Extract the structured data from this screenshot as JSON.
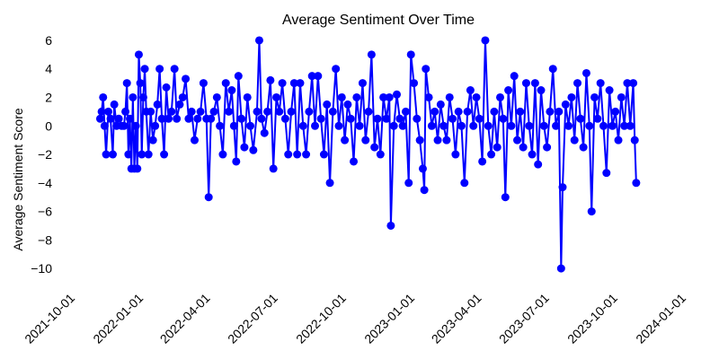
{
  "chart_data": {
    "type": "line",
    "title": "Average Sentiment Over Time",
    "xlabel": "",
    "ylabel": "Average Sentiment Score",
    "x_ticks": [
      "2021-10-01",
      "2022-01-01",
      "2022-04-01",
      "2022-07-01",
      "2022-10-01",
      "2023-01-01",
      "2023-04-01",
      "2023-07-01",
      "2023-10-01",
      "2024-01-01"
    ],
    "y_ticks": [
      6,
      4,
      2,
      0,
      -2,
      -4,
      -6,
      -8,
      -10
    ],
    "xlim": [
      "2021-10-01",
      "2024-01-01"
    ],
    "ylim": [
      -11,
      6.5
    ],
    "grid": false,
    "series_color": "#0000ff",
    "series": [
      {
        "marker": "circle",
        "points": [
          [
            "2021-11-08",
            0.5
          ],
          [
            "2021-11-10",
            1.0
          ],
          [
            "2021-11-12",
            2.0
          ],
          [
            "2021-11-14",
            0.0
          ],
          [
            "2021-11-16",
            -2.0
          ],
          [
            "2021-11-19",
            1.0
          ],
          [
            "2021-11-22",
            0.5
          ],
          [
            "2021-11-25",
            -2.0
          ],
          [
            "2021-11-27",
            1.5
          ],
          [
            "2021-11-30",
            0.0
          ],
          [
            "2021-12-03",
            0.5
          ],
          [
            "2021-12-07",
            0.0
          ],
          [
            "2021-12-10",
            0.0
          ],
          [
            "2021-12-12",
            1.0
          ],
          [
            "2021-12-14",
            3.0
          ],
          [
            "2021-12-16",
            -2.0
          ],
          [
            "2021-12-18",
            0.5
          ],
          [
            "2021-12-20",
            -3.0
          ],
          [
            "2021-12-22",
            2.0
          ],
          [
            "2021-12-24",
            -3.0
          ],
          [
            "2021-12-26",
            0.0
          ],
          [
            "2021-12-28",
            -3.0
          ],
          [
            "2021-12-30",
            5.0
          ],
          [
            "2022-01-01",
            3.0
          ],
          [
            "2022-01-03",
            -2.0
          ],
          [
            "2022-01-05",
            2.0
          ],
          [
            "2022-01-07",
            4.0
          ],
          [
            "2022-01-09",
            1.0
          ],
          [
            "2022-01-12",
            -2.0
          ],
          [
            "2022-01-15",
            1.0
          ],
          [
            "2022-01-18",
            -1.0
          ],
          [
            "2022-01-21",
            0.0
          ],
          [
            "2022-01-24",
            1.5
          ],
          [
            "2022-01-27",
            4.0
          ],
          [
            "2022-01-30",
            0.5
          ],
          [
            "2022-02-02",
            -2.0
          ],
          [
            "2022-02-05",
            2.7
          ],
          [
            "2022-02-08",
            0.5
          ],
          [
            "2022-02-12",
            1.0
          ],
          [
            "2022-02-16",
            4.0
          ],
          [
            "2022-02-19",
            0.5
          ],
          [
            "2022-02-23",
            1.5
          ],
          [
            "2022-02-27",
            2.0
          ],
          [
            "2022-03-03",
            3.3
          ],
          [
            "2022-03-07",
            0.5
          ],
          [
            "2022-03-11",
            1.0
          ],
          [
            "2022-03-15",
            -1.0
          ],
          [
            "2022-03-19",
            0.5
          ],
          [
            "2022-03-23",
            1.0
          ],
          [
            "2022-03-27",
            3.0
          ],
          [
            "2022-03-31",
            0.5
          ],
          [
            "2022-04-03",
            -5.0
          ],
          [
            "2022-04-06",
            0.5
          ],
          [
            "2022-04-10",
            1.0
          ],
          [
            "2022-04-14",
            2.0
          ],
          [
            "2022-04-18",
            0.0
          ],
          [
            "2022-04-22",
            -2.0
          ],
          [
            "2022-04-26",
            3.0
          ],
          [
            "2022-04-30",
            1.0
          ],
          [
            "2022-05-04",
            2.5
          ],
          [
            "2022-05-07",
            0.0
          ],
          [
            "2022-05-10",
            -2.5
          ],
          [
            "2022-05-13",
            3.5
          ],
          [
            "2022-05-17",
            0.5
          ],
          [
            "2022-05-21",
            -1.5
          ],
          [
            "2022-05-25",
            2.0
          ],
          [
            "2022-05-29",
            0.0
          ],
          [
            "2022-06-02",
            -1.7
          ],
          [
            "2022-06-07",
            1.0
          ],
          [
            "2022-06-10",
            6.0
          ],
          [
            "2022-06-13",
            0.5
          ],
          [
            "2022-06-17",
            -0.5
          ],
          [
            "2022-06-21",
            1.0
          ],
          [
            "2022-06-25",
            3.2
          ],
          [
            "2022-06-29",
            -3.0
          ],
          [
            "2022-07-03",
            2.0
          ],
          [
            "2022-07-07",
            1.0
          ],
          [
            "2022-07-11",
            3.0
          ],
          [
            "2022-07-15",
            0.5
          ],
          [
            "2022-07-19",
            -2.0
          ],
          [
            "2022-07-23",
            1.0
          ],
          [
            "2022-07-27",
            3.0
          ],
          [
            "2022-07-31",
            -2.0
          ],
          [
            "2022-08-04",
            3.0
          ],
          [
            "2022-08-08",
            0.0
          ],
          [
            "2022-08-12",
            -2.0
          ],
          [
            "2022-08-16",
            1.0
          ],
          [
            "2022-08-20",
            3.5
          ],
          [
            "2022-08-24",
            0.0
          ],
          [
            "2022-08-28",
            3.5
          ],
          [
            "2022-09-01",
            0.5
          ],
          [
            "2022-09-05",
            -2.0
          ],
          [
            "2022-09-09",
            1.5
          ],
          [
            "2022-09-13",
            -4.0
          ],
          [
            "2022-09-17",
            1.0
          ],
          [
            "2022-09-21",
            4.0
          ],
          [
            "2022-09-25",
            0.0
          ],
          [
            "2022-09-29",
            2.0
          ],
          [
            "2022-10-03",
            -1.0
          ],
          [
            "2022-10-07",
            1.5
          ],
          [
            "2022-10-11",
            0.5
          ],
          [
            "2022-10-15",
            -2.5
          ],
          [
            "2022-10-19",
            2.0
          ],
          [
            "2022-10-23",
            0.0
          ],
          [
            "2022-10-27",
            3.0
          ],
          [
            "2022-10-31",
            -1.0
          ],
          [
            "2022-11-04",
            1.0
          ],
          [
            "2022-11-08",
            5.0
          ],
          [
            "2022-11-12",
            -1.5
          ],
          [
            "2022-11-16",
            0.5
          ],
          [
            "2022-11-20",
            -2.0
          ],
          [
            "2022-11-24",
            2.0
          ],
          [
            "2022-11-28",
            0.5
          ],
          [
            "2022-12-02",
            2.0
          ],
          [
            "2022-12-04",
            -7.0
          ],
          [
            "2022-12-08",
            0.0
          ],
          [
            "2022-12-12",
            2.2
          ],
          [
            "2022-12-16",
            0.5
          ],
          [
            "2022-12-20",
            0.0
          ],
          [
            "2022-12-24",
            1.0
          ],
          [
            "2022-12-28",
            -4.0
          ],
          [
            "2022-12-31",
            5.0
          ],
          [
            "2023-01-04",
            3.0
          ],
          [
            "2023-01-08",
            0.5
          ],
          [
            "2023-01-12",
            -1.0
          ],
          [
            "2023-01-16",
            -3.0
          ],
          [
            "2023-01-18",
            -4.5
          ],
          [
            "2023-01-20",
            4.0
          ],
          [
            "2023-01-24",
            2.0
          ],
          [
            "2023-01-28",
            0.0
          ],
          [
            "2023-02-01",
            1.0
          ],
          [
            "2023-02-05",
            -1.0
          ],
          [
            "2023-02-09",
            1.5
          ],
          [
            "2023-02-13",
            0.0
          ],
          [
            "2023-02-17",
            -1.0
          ],
          [
            "2023-02-21",
            2.0
          ],
          [
            "2023-02-25",
            0.5
          ],
          [
            "2023-03-01",
            -2.0
          ],
          [
            "2023-03-05",
            1.0
          ],
          [
            "2023-03-09",
            0.0
          ],
          [
            "2023-03-13",
            -4.0
          ],
          [
            "2023-03-17",
            1.0
          ],
          [
            "2023-03-21",
            2.5
          ],
          [
            "2023-03-25",
            0.0
          ],
          [
            "2023-03-29",
            2.0
          ],
          [
            "2023-04-02",
            0.5
          ],
          [
            "2023-04-06",
            -2.5
          ],
          [
            "2023-04-10",
            6.0
          ],
          [
            "2023-04-14",
            0.0
          ],
          [
            "2023-04-18",
            -2.0
          ],
          [
            "2023-04-22",
            1.0
          ],
          [
            "2023-04-26",
            -1.5
          ],
          [
            "2023-04-30",
            2.0
          ],
          [
            "2023-05-04",
            0.5
          ],
          [
            "2023-05-07",
            -5.0
          ],
          [
            "2023-05-11",
            2.5
          ],
          [
            "2023-05-15",
            0.0
          ],
          [
            "2023-05-19",
            3.5
          ],
          [
            "2023-05-23",
            -1.0
          ],
          [
            "2023-05-27",
            1.0
          ],
          [
            "2023-05-31",
            -1.5
          ],
          [
            "2023-06-04",
            3.0
          ],
          [
            "2023-06-08",
            0.0
          ],
          [
            "2023-06-12",
            -2.0
          ],
          [
            "2023-06-16",
            3.0
          ],
          [
            "2023-06-20",
            -2.7
          ],
          [
            "2023-06-24",
            2.5
          ],
          [
            "2023-06-28",
            0.0
          ],
          [
            "2023-07-02",
            -1.5
          ],
          [
            "2023-07-06",
            1.0
          ],
          [
            "2023-07-10",
            4.0
          ],
          [
            "2023-07-14",
            0.0
          ],
          [
            "2023-07-18",
            1.0
          ],
          [
            "2023-07-21",
            -10.0
          ],
          [
            "2023-07-23",
            -4.3
          ],
          [
            "2023-07-27",
            1.5
          ],
          [
            "2023-07-31",
            0.0
          ],
          [
            "2023-08-04",
            2.0
          ],
          [
            "2023-08-08",
            -1.0
          ],
          [
            "2023-08-12",
            3.0
          ],
          [
            "2023-08-16",
            0.5
          ],
          [
            "2023-08-20",
            -1.5
          ],
          [
            "2023-08-24",
            3.7
          ],
          [
            "2023-08-28",
            0.0
          ],
          [
            "2023-08-31",
            -6.0
          ],
          [
            "2023-09-04",
            2.0
          ],
          [
            "2023-09-08",
            0.5
          ],
          [
            "2023-09-12",
            3.0
          ],
          [
            "2023-09-16",
            0.0
          ],
          [
            "2023-09-20",
            -3.3
          ],
          [
            "2023-09-24",
            2.5
          ],
          [
            "2023-09-28",
            0.0
          ],
          [
            "2023-10-02",
            1.0
          ],
          [
            "2023-10-06",
            -1.0
          ],
          [
            "2023-10-10",
            2.0
          ],
          [
            "2023-10-14",
            0.0
          ],
          [
            "2023-10-18",
            3.0
          ],
          [
            "2023-10-22",
            0.0
          ],
          [
            "2023-10-26",
            3.0
          ],
          [
            "2023-10-28",
            -1.0
          ],
          [
            "2023-10-30",
            -4.0
          ]
        ]
      }
    ]
  }
}
